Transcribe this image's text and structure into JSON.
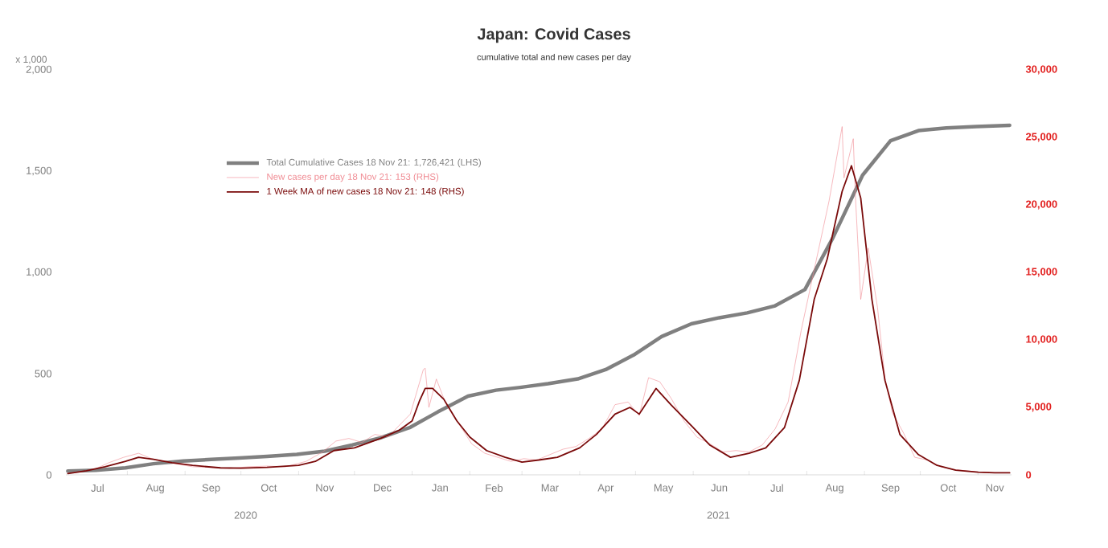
{
  "chart_data": {
    "type": "line",
    "title": "Japan: Covid Cases",
    "subtitle": "cumulative total and new cases per day",
    "ylabel": "x 1,000",
    "annotations": [
      "2020",
      "2021"
    ],
    "legend": "top left",
    "xlim": [
      "2020-06-29",
      "2021-11-19"
    ],
    "xticks": [
      {
        "value": "2020-07-16",
        "label": "Jul"
      },
      {
        "value": "2020-08-16",
        "label": "Aug"
      },
      {
        "value": "2020-09-15",
        "label": "Sep"
      },
      {
        "value": "2020-10-16",
        "label": "Oct"
      },
      {
        "value": "2020-11-15",
        "label": "Nov"
      },
      {
        "value": "2020-12-16",
        "label": "Dec"
      },
      {
        "value": "2021-01-16",
        "label": "Jan"
      },
      {
        "value": "2021-02-14",
        "label": "Feb"
      },
      {
        "value": "2021-03-16",
        "label": "Mar"
      },
      {
        "value": "2021-04-15",
        "label": "Apr"
      },
      {
        "value": "2021-05-16",
        "label": "May"
      },
      {
        "value": "2021-06-15",
        "label": "Jun"
      },
      {
        "value": "2021-07-16",
        "label": "Jul"
      },
      {
        "value": "2021-08-16",
        "label": "Aug"
      },
      {
        "value": "2021-09-15",
        "label": "Sep"
      },
      {
        "value": "2021-10-16",
        "label": "Oct"
      },
      {
        "value": "2021-11-10",
        "label": "Nov"
      },
      {
        "value": "2020-08-01",
        "label": null
      },
      {
        "value": "2020-09-01",
        "label": null
      },
      {
        "value": "2020-10-01",
        "label": null
      },
      {
        "value": "2020-11-01",
        "label": null
      },
      {
        "value": "2020-12-01",
        "label": null
      },
      {
        "value": "2021-01-01",
        "label": null
      },
      {
        "value": "2021-02-01",
        "label": null
      },
      {
        "value": "2021-03-01",
        "label": null
      },
      {
        "value": "2021-04-01",
        "label": null
      },
      {
        "value": "2021-05-01",
        "label": null
      },
      {
        "value": "2021-06-01",
        "label": null
      },
      {
        "value": "2021-07-01",
        "label": null
      },
      {
        "value": "2021-08-01",
        "label": null
      },
      {
        "value": "2021-09-01",
        "label": null
      },
      {
        "value": "2021-10-01",
        "label": null
      },
      {
        "value": "2021-11-01",
        "label": null
      }
    ],
    "ylim": [
      0,
      2000
    ],
    "yticks": [
      {
        "value": 0,
        "label": "0"
      },
      {
        "value": 500,
        "label": "500"
      },
      {
        "value": 1000,
        "label": "1,000"
      },
      {
        "value": 1500,
        "label": "1,500"
      },
      {
        "value": 2000,
        "label": "2,000"
      }
    ],
    "y2lim": [
      0,
      30000
    ],
    "y2ticks": [
      {
        "value": 0,
        "label": "0"
      },
      {
        "value": 5000,
        "label": "5,000"
      },
      {
        "value": 10000,
        "label": "10,000"
      },
      {
        "value": 15000,
        "label": "15,000"
      },
      {
        "value": 20000,
        "label": "20,000"
      },
      {
        "value": 25000,
        "label": "25,000"
      },
      {
        "value": 30000,
        "label": "30,000"
      }
    ],
    "series": [
      {
        "name": "Total Cumulative Cases 18 Nov 21: 1,726,421 (LHS)",
        "color": "#808080",
        "x": [
          "2020-06-30",
          "2020-07-15",
          "2020-07-31",
          "2020-08-15",
          "2020-08-31",
          "2020-09-15",
          "2020-09-30",
          "2020-10-15",
          "2020-10-31",
          "2020-11-15",
          "2020-11-30",
          "2020-12-15",
          "2020-12-31",
          "2021-01-15",
          "2021-01-31",
          "2021-02-15",
          "2021-02-28",
          "2021-03-15",
          "2021-03-31",
          "2021-04-15",
          "2021-04-30",
          "2021-05-15",
          "2021-05-31",
          "2021-06-15",
          "2021-06-30",
          "2021-07-15",
          "2021-07-31",
          "2021-08-15",
          "2021-08-31",
          "2021-09-15",
          "2021-09-30",
          "2021-10-15",
          "2021-10-31",
          "2021-11-18"
        ],
        "values": [
          19,
          23,
          35,
          55,
          68,
          76,
          83,
          91,
          101,
          117,
          148,
          183,
          235,
          312,
          389,
          418,
          432,
          450,
          474,
          520,
          592,
          683,
          746,
          776,
          800,
          835,
          915,
          1170,
          1480,
          1650,
          1700,
          1713,
          1720,
          1726
        ]
      },
      {
        "name": "New cases per day 18 Nov 21: 153 (RHS)",
        "color": "#f08a92",
        "axis": "y2",
        "x": [
          "2020-06-30",
          "2020-07-08",
          "2020-07-15",
          "2020-07-22",
          "2020-07-30",
          "2020-08-07",
          "2020-08-14",
          "2020-08-21",
          "2020-08-28",
          "2020-09-05",
          "2020-09-15",
          "2020-09-25",
          "2020-10-05",
          "2020-10-15",
          "2020-10-25",
          "2020-11-05",
          "2020-11-14",
          "2020-11-21",
          "2020-11-28",
          "2020-12-05",
          "2020-12-12",
          "2020-12-19",
          "2020-12-26",
          "2020-12-31",
          "2021-01-07",
          "2021-01-08",
          "2021-01-10",
          "2021-01-14",
          "2021-01-19",
          "2021-01-26",
          "2021-02-02",
          "2021-02-09",
          "2021-02-16",
          "2021-02-23",
          "2021-03-02",
          "2021-03-09",
          "2021-03-16",
          "2021-03-23",
          "2021-03-30",
          "2021-04-06",
          "2021-04-13",
          "2021-04-20",
          "2021-04-27",
          "2021-05-03",
          "2021-05-08",
          "2021-05-14",
          "2021-05-20",
          "2021-05-27",
          "2021-06-03",
          "2021-06-10",
          "2021-06-17",
          "2021-06-24",
          "2021-07-01",
          "2021-07-08",
          "2021-07-15",
          "2021-07-22",
          "2021-07-29",
          "2021-08-05",
          "2021-08-13",
          "2021-08-20",
          "2021-08-21",
          "2021-08-26",
          "2021-08-27",
          "2021-08-30",
          "2021-09-03",
          "2021-09-08",
          "2021-09-12",
          "2021-09-16",
          "2021-09-22",
          "2021-09-28",
          "2021-10-05",
          "2021-10-12",
          "2021-10-19",
          "2021-10-26",
          "2021-11-02",
          "2021-11-09",
          "2021-11-18"
        ],
        "values": [
          130,
          250,
          450,
          900,
          1300,
          1600,
          1200,
          1000,
          800,
          600,
          550,
          480,
          600,
          650,
          600,
          1000,
          1700,
          2500,
          2700,
          2400,
          3000,
          2800,
          3800,
          4500,
          7800,
          7900,
          5000,
          7100,
          5300,
          3800,
          2300,
          1600,
          1300,
          1000,
          1200,
          1100,
          1500,
          1900,
          2100,
          2700,
          3400,
          5200,
          5400,
          4400,
          7200,
          6900,
          5700,
          4000,
          2800,
          2300,
          1700,
          1800,
          1700,
          2200,
          3400,
          5400,
          10700,
          15200,
          20300,
          25800,
          22000,
          24900,
          21000,
          13000,
          16800,
          12400,
          7200,
          4600,
          3100,
          1300,
          1100,
          600,
          400,
          300,
          200,
          150,
          150
        ]
      },
      {
        "name": "1 Week MA of new cases 18 Nov 21: 148 (RHS)",
        "color": "#7a0a0a",
        "axis": "y2",
        "x": [
          "2020-06-30",
          "2020-07-10",
          "2020-07-20",
          "2020-07-31",
          "2020-08-07",
          "2020-08-15",
          "2020-08-25",
          "2020-09-05",
          "2020-09-20",
          "2020-10-01",
          "2020-10-15",
          "2020-11-01",
          "2020-11-10",
          "2020-11-20",
          "2020-12-01",
          "2020-12-15",
          "2020-12-25",
          "2021-01-01",
          "2021-01-05",
          "2021-01-08",
          "2021-01-12",
          "2021-01-18",
          "2021-01-25",
          "2021-02-01",
          "2021-02-10",
          "2021-02-20",
          "2021-03-01",
          "2021-03-10",
          "2021-03-20",
          "2021-04-01",
          "2021-04-10",
          "2021-04-20",
          "2021-04-28",
          "2021-05-03",
          "2021-05-12",
          "2021-05-20",
          "2021-06-01",
          "2021-06-10",
          "2021-06-21",
          "2021-07-01",
          "2021-07-10",
          "2021-07-20",
          "2021-07-28",
          "2021-08-05",
          "2021-08-12",
          "2021-08-20",
          "2021-08-25",
          "2021-08-30",
          "2021-09-05",
          "2021-09-12",
          "2021-09-20",
          "2021-09-30",
          "2021-10-10",
          "2021-10-20",
          "2021-11-01",
          "2021-11-10",
          "2021-11-18"
        ],
        "values": [
          100,
          300,
          600,
          1000,
          1300,
          1150,
          900,
          700,
          520,
          500,
          560,
          700,
          1000,
          1800,
          2000,
          2700,
          3300,
          4000,
          5500,
          6400,
          6400,
          5600,
          4000,
          2800,
          1800,
          1300,
          950,
          1100,
          1300,
          2000,
          3000,
          4500,
          5000,
          4500,
          6400,
          5200,
          3500,
          2200,
          1300,
          1600,
          2000,
          3500,
          7000,
          13000,
          16000,
          21000,
          22900,
          20500,
          13000,
          7000,
          3000,
          1500,
          700,
          350,
          200,
          160,
          150
        ]
      }
    ]
  }
}
